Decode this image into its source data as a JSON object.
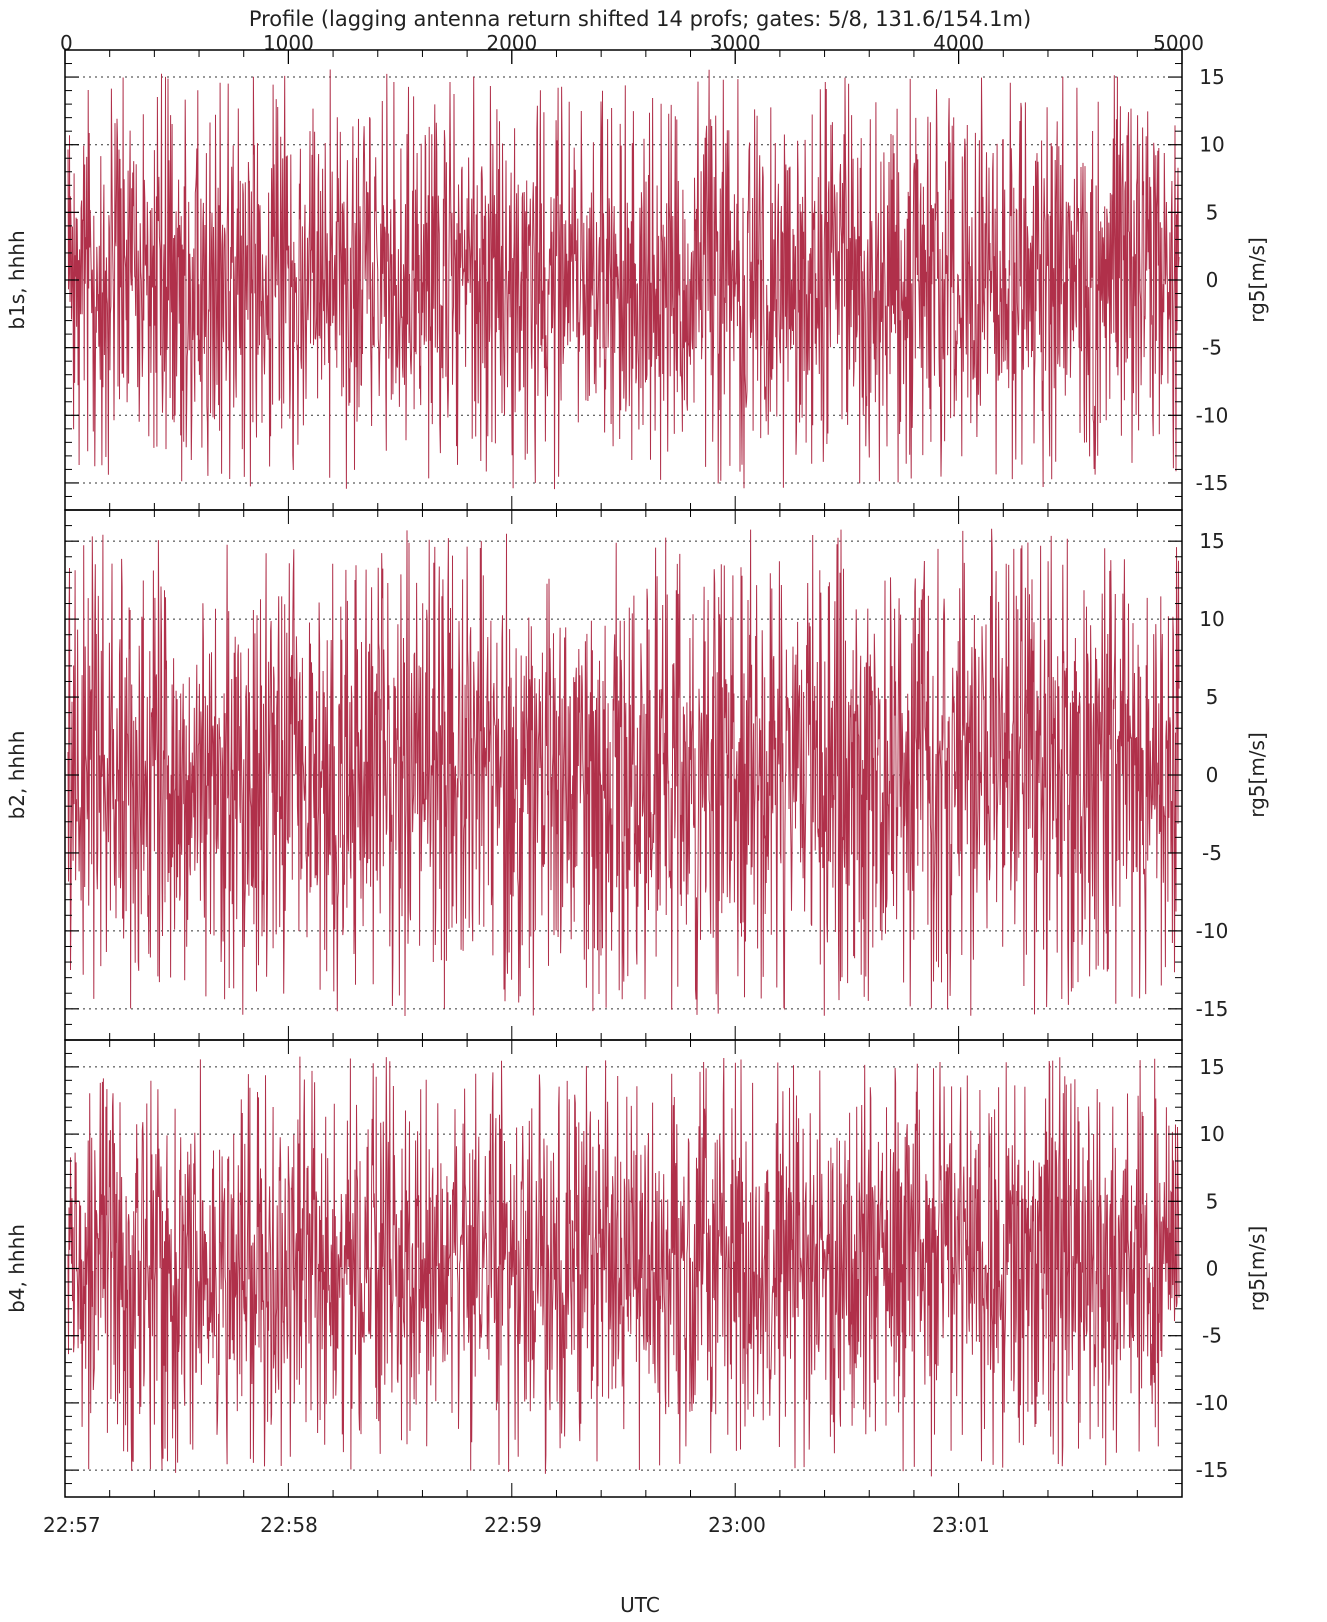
{
  "chart_data": {
    "type": "line",
    "title": "Profile (lagging antenna return shifted 14 profs; gates: 5/8, 131.6/154.1m)",
    "xlabel": "UTC",
    "top_axis": {
      "xlim": [
        0,
        5000
      ],
      "ticks": [
        "0",
        "1000",
        "2000",
        "3000",
        "4000",
        "5000"
      ]
    },
    "bottom_axis": {
      "ticks": [
        "22:57",
        "22:58",
        "22:59",
        "23:00",
        "23:01"
      ]
    },
    "line_color": "#b0304a",
    "grid": "dotted at y = -15, -10, -5, 0, 5, 10, 15",
    "panels": [
      {
        "ylabel_left": "b1s, hhhh",
        "ylabel_right": "rg5[m/s]",
        "ylim": [
          -17,
          17
        ],
        "yticks": [
          "15",
          "10",
          "5",
          "0",
          "-5",
          "-10",
          "-15"
        ],
        "series": [
          {
            "amplitude_range": [
              -15.5,
              15.8
            ],
            "n_profiles": 5000
          }
        ]
      },
      {
        "ylabel_left": "b2, hhhh",
        "ylabel_right": "rg5[m/s]",
        "ylim": [
          -17,
          17
        ],
        "yticks": [
          "15",
          "10",
          "5",
          "0",
          "-5",
          "-10",
          "-15"
        ],
        "series": [
          {
            "amplitude_range": [
              -15.5,
              15.8
            ],
            "n_profiles": 5000
          }
        ]
      },
      {
        "ylabel_left": "b4, hhhh",
        "ylabel_right": "rg5[m/s]",
        "ylim": [
          -17,
          17
        ],
        "yticks": [
          "15",
          "10",
          "5",
          "0",
          "-5",
          "-10",
          "-15"
        ],
        "series": [
          {
            "amplitude_range": [
              -15.5,
              15.8
            ],
            "n_profiles": 5000
          }
        ]
      }
    ]
  }
}
